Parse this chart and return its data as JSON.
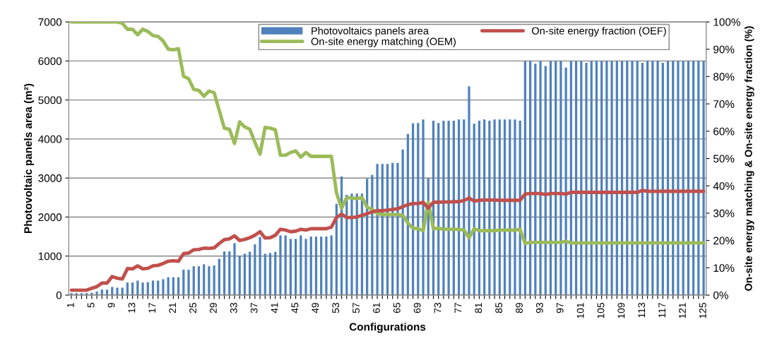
{
  "chart_data": {
    "type": "bar",
    "xlabel": "Configurations",
    "ylabel": "Photovoltaic panels area (m²)",
    "y2label": "On-site energy matching & On-site energy fraction (%)",
    "categories": [
      "1",
      null,
      null,
      null,
      "5",
      null,
      null,
      null,
      "9",
      null,
      null,
      null,
      "13",
      null,
      null,
      null,
      "17",
      null,
      null,
      null,
      "21",
      null,
      null,
      null,
      "25",
      null,
      null,
      null,
      "29",
      null,
      null,
      null,
      "33",
      null,
      null,
      null,
      "37",
      null,
      null,
      null,
      "41",
      null,
      null,
      null,
      "45",
      null,
      null,
      null,
      "49",
      null,
      null,
      null,
      "53",
      null,
      null,
      null,
      "57",
      null,
      null,
      null,
      "61",
      null,
      null,
      null,
      "65",
      null,
      null,
      null,
      "69",
      null,
      null,
      null,
      "73",
      null,
      null,
      null,
      "77",
      null,
      null,
      null,
      "81",
      null,
      null,
      null,
      "85",
      null,
      null,
      null,
      "89",
      null,
      null,
      null,
      "93",
      null,
      null,
      null,
      "97",
      null,
      null,
      null,
      "101",
      null,
      null,
      null,
      "105",
      null,
      null,
      null,
      "109",
      null,
      null,
      null,
      "113",
      null,
      null,
      null,
      "117",
      null,
      null,
      null,
      "121",
      null,
      null,
      null,
      "125"
    ],
    "series": [
      {
        "name": "Photovoltaics panels area",
        "axis": "y",
        "color": "#4f81bd",
        "values": [
          50,
          50,
          50,
          50,
          60,
          90,
          140,
          140,
          210,
          190,
          190,
          320,
          320,
          370,
          320,
          330,
          370,
          370,
          410,
          460,
          460,
          460,
          650,
          650,
          740,
          740,
          790,
          740,
          760,
          930,
          1120,
          1120,
          1330,
          1010,
          1060,
          1110,
          1300,
          1490,
          1060,
          1080,
          1110,
          1530,
          1530,
          1440,
          1440,
          1530,
          1440,
          1500,
          1500,
          1500,
          1500,
          1530,
          2340,
          3040,
          2570,
          2600,
          2600,
          2600,
          2980,
          3080,
          3360,
          3360,
          3360,
          3390,
          3390,
          3730,
          4130,
          4400,
          4410,
          4500,
          2990,
          4470,
          4410,
          4470,
          4470,
          4470,
          4500,
          4500,
          5350,
          4390,
          4470,
          4500,
          4470,
          4500,
          4500,
          4500,
          4500,
          4500,
          4470,
          6000,
          6000,
          5930,
          6000,
          5870,
          6000,
          6000,
          6000,
          5830,
          6000,
          6000,
          6000,
          5950,
          6000,
          6000,
          6000,
          6000,
          6000,
          6000,
          6000,
          6000,
          6000,
          6000,
          5950,
          6000,
          6000,
          6000,
          5950,
          6000,
          6000,
          6000,
          6000,
          6000,
          6000,
          6000,
          6000
        ]
      },
      {
        "name": "On-site energy matching (OEM)",
        "type": "line",
        "axis": "y2",
        "color": "#9bbb59",
        "values": [
          100,
          100,
          100,
          100,
          100,
          100,
          100,
          100,
          100,
          100,
          99.5,
          97.3,
          97.3,
          95.3,
          97.3,
          96.5,
          95.0,
          94.7,
          93.0,
          90.0,
          89.8,
          90.2,
          80.1,
          79.2,
          75.3,
          74.9,
          72.8,
          74.7,
          74.1,
          67.6,
          61.1,
          60.7,
          55.5,
          63.4,
          61.6,
          60.7,
          55.9,
          51.6,
          61.4,
          61.1,
          60.5,
          51.2,
          51.2,
          52.2,
          52.8,
          50.5,
          52.2,
          50.8,
          50.8,
          50.8,
          50.8,
          50.8,
          37.4,
          31.8,
          35.7,
          35.5,
          35.3,
          35.7,
          32.2,
          31.4,
          29.8,
          29.5,
          29.5,
          29.5,
          29.5,
          29.2,
          26.4,
          24.5,
          24.3,
          23.6,
          34.0,
          24.3,
          24.5,
          24.1,
          24.1,
          24.1,
          24.1,
          23.8,
          21.0,
          24.3,
          23.6,
          23.6,
          23.6,
          23.6,
          23.8,
          23.8,
          23.8,
          23.8,
          24.1,
          18.9,
          19.3,
          19.3,
          19.3,
          19.3,
          19.3,
          19.3,
          19.3,
          19.7,
          19.1,
          19.1,
          19.1,
          19.1,
          19.1,
          19.1,
          19.1,
          19.1,
          19.1,
          19.1,
          19.1,
          19.1,
          19.1,
          19.1,
          19.1,
          19.1,
          19.1,
          19.1,
          19.1,
          19.1,
          19.1,
          19.1,
          19.1,
          19.1,
          19.1,
          19.1,
          19.1
        ]
      },
      {
        "name": "On-site energy fraction (OEF)",
        "type": "line",
        "axis": "y2",
        "color": "#c0504d",
        "values": [
          1.8,
          1.8,
          1.8,
          1.8,
          2.5,
          3.1,
          4.4,
          4.4,
          6.8,
          6.2,
          5.9,
          9.7,
          9.6,
          10.7,
          9.6,
          9.8,
          10.7,
          10.9,
          11.6,
          12.4,
          12.6,
          12.4,
          15.2,
          15.4,
          16.6,
          16.7,
          17.2,
          17.1,
          17.3,
          18.9,
          20.3,
          20.6,
          21.7,
          20.0,
          20.4,
          21.0,
          21.9,
          23.2,
          20.9,
          21.0,
          21.9,
          24.1,
          23.8,
          23.2,
          23.4,
          24.1,
          23.8,
          24.3,
          24.3,
          24.3,
          24.3,
          24.9,
          28.4,
          29.7,
          28.4,
          28.4,
          28.6,
          29.2,
          29.8,
          30.5,
          30.9,
          30.9,
          31.1,
          31.4,
          31.6,
          32.4,
          33.1,
          33.5,
          33.5,
          34.0,
          31.8,
          34.0,
          34.0,
          34.1,
          34.1,
          34.2,
          34.2,
          34.6,
          35.5,
          34.4,
          34.7,
          34.8,
          34.8,
          34.8,
          34.7,
          34.7,
          34.7,
          34.7,
          34.7,
          37.0,
          37.2,
          37.2,
          37.2,
          36.8,
          37.2,
          37.2,
          37.2,
          37.0,
          37.6,
          37.6,
          37.6,
          37.6,
          37.6,
          37.6,
          37.6,
          37.6,
          37.6,
          37.6,
          37.6,
          37.6,
          37.6,
          37.6,
          38.3,
          38.0,
          38.0,
          38.0,
          38.0,
          38.0,
          38.0,
          38.0,
          38.0,
          38.0,
          38.0,
          38.0,
          38.0
        ]
      }
    ],
    "ylim": [
      0,
      7000
    ],
    "yticks": [
      0,
      1000,
      2000,
      3000,
      4000,
      5000,
      6000,
      7000
    ],
    "y2lim": [
      0,
      100
    ],
    "y2ticks": [
      {
        "value": 0,
        "label": "0%"
      },
      {
        "value": 10,
        "label": "10%"
      },
      {
        "value": 20,
        "label": "20%"
      },
      {
        "value": 30,
        "label": "30%"
      },
      {
        "value": 40,
        "label": "40%"
      },
      {
        "value": 50,
        "label": "50%"
      },
      {
        "value": 60,
        "label": "60%"
      },
      {
        "value": 70,
        "label": "70%"
      },
      {
        "value": 80,
        "label": "80%"
      },
      {
        "value": 90,
        "label": "90%"
      },
      {
        "value": 100,
        "label": "100%"
      }
    ],
    "grid": "y",
    "legend": "top",
    "marker": "none",
    "line_style": "solid"
  }
}
